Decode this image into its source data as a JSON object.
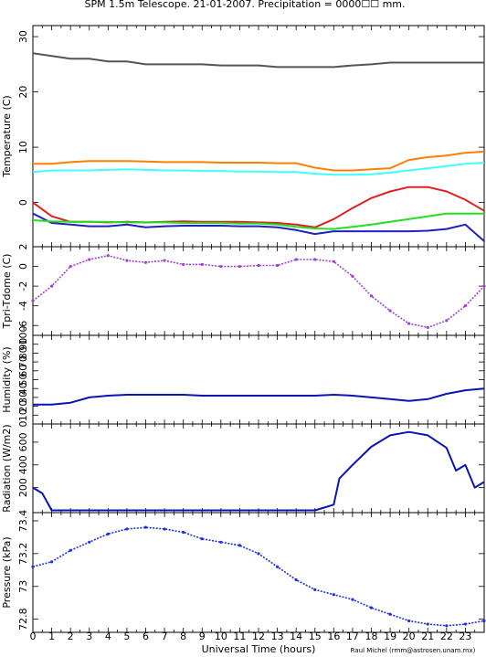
{
  "title": "SPM 1.5m Telescope. 21-01-2007. Precipitation = 0000☐☐ mm.",
  "xlabel": "Universal Time (hours)",
  "credit": "Raul Michel (rmm@astrosen.unam.mx)",
  "x_ticks": [
    "0",
    "1",
    "2",
    "3",
    "4",
    "5",
    "6",
    "7",
    "8",
    "9",
    "10",
    "11",
    "12",
    "13",
    "14",
    "15",
    "16",
    "17",
    "18",
    "19",
    "20",
    "21",
    "22",
    "23"
  ],
  "chart_data": [
    {
      "type": "line",
      "ylabel": "Temperature (C)",
      "ylim": [
        -8,
        32
      ],
      "y_ticks": [
        "0",
        "10",
        "20",
        "30"
      ],
      "series": [
        {
          "color": "#555555",
          "x": [
            0,
            1,
            2,
            3,
            4,
            5,
            6,
            7,
            8,
            9,
            10,
            11,
            12,
            13,
            14,
            15,
            16,
            17,
            18,
            19,
            20,
            21,
            22,
            23,
            24
          ],
          "values": [
            27,
            26.5,
            26,
            26,
            25.5,
            25.5,
            25,
            25,
            25,
            25,
            24.8,
            24.8,
            24.8,
            24.5,
            24.5,
            24.5,
            24.5,
            24.8,
            25,
            25.3,
            25.3,
            25.3,
            25.3,
            25.3,
            25.3
          ]
        },
        {
          "color": "#ff8000",
          "x": [
            0,
            1,
            2,
            3,
            4,
            5,
            6,
            7,
            8,
            9,
            10,
            11,
            12,
            13,
            14,
            15,
            16,
            17,
            18,
            19,
            20,
            21,
            22,
            23,
            24
          ],
          "values": [
            7,
            7,
            7.3,
            7.5,
            7.5,
            7.5,
            7.4,
            7.3,
            7.3,
            7.3,
            7.2,
            7.2,
            7.2,
            7.1,
            7.1,
            6.3,
            5.8,
            5.8,
            6,
            6.2,
            7.7,
            8.2,
            8.5,
            9,
            9.2
          ]
        },
        {
          "color": "#40ffff",
          "x": [
            0,
            1,
            2,
            3,
            4,
            5,
            6,
            7,
            8,
            9,
            10,
            11,
            12,
            13,
            14,
            15,
            16,
            17,
            18,
            19,
            20,
            21,
            22,
            23,
            24
          ],
          "values": [
            5.5,
            5.8,
            5.8,
            5.8,
            5.9,
            6,
            5.9,
            5.8,
            5.8,
            5.7,
            5.7,
            5.6,
            5.6,
            5.5,
            5.5,
            5.2,
            5,
            5,
            5.1,
            5.4,
            5.8,
            6.2,
            6.6,
            7,
            7.2
          ]
        },
        {
          "color": "#e02020",
          "x": [
            0,
            1,
            2,
            3,
            4,
            5,
            6,
            7,
            8,
            9,
            10,
            11,
            12,
            13,
            14,
            15,
            16,
            17,
            18,
            19,
            20,
            21,
            22,
            23,
            24
          ],
          "values": [
            0,
            -2.5,
            -3.5,
            -3.5,
            -3.6,
            -3.5,
            -3.6,
            -3.5,
            -3.4,
            -3.5,
            -3.5,
            -3.5,
            -3.6,
            -3.7,
            -4,
            -4.5,
            -3,
            -1,
            0.8,
            2,
            2.8,
            2.8,
            2,
            0.5,
            -1.5
          ]
        },
        {
          "color": "#2020c0",
          "x": [
            0,
            1,
            2,
            3,
            4,
            5,
            6,
            7,
            8,
            9,
            10,
            11,
            12,
            13,
            14,
            15,
            16,
            17,
            18,
            19,
            20,
            21,
            22,
            23,
            24
          ],
          "values": [
            -2,
            -3.7,
            -4,
            -4.3,
            -4.3,
            -4,
            -4.5,
            -4.3,
            -4.2,
            -4.2,
            -4.2,
            -4.3,
            -4.3,
            -4.5,
            -5,
            -5.7,
            -5.2,
            -5.2,
            -5.2,
            -5.2,
            -5.2,
            -5.1,
            -4.8,
            -4,
            -7
          ]
        },
        {
          "color": "#20e020",
          "x": [
            0,
            1,
            2,
            3,
            4,
            5,
            6,
            7,
            8,
            9,
            10,
            11,
            12,
            13,
            14,
            15,
            16,
            17,
            18,
            19,
            20,
            21,
            22,
            23,
            24
          ],
          "values": [
            -3.2,
            -3.4,
            -3.5,
            -3.5,
            -3.5,
            -3.6,
            -3.6,
            -3.6,
            -3.7,
            -3.7,
            -3.7,
            -3.8,
            -3.8,
            -4,
            -4.4,
            -4.7,
            -4.8,
            -4.4,
            -4,
            -3.5,
            -3,
            -2.5,
            -2,
            -2,
            -2
          ]
        }
      ]
    },
    {
      "type": "scatter",
      "ylabel": "Tpri-Tdome (C)",
      "ylim": [
        -7,
        2
      ],
      "y_ticks": [
        "2",
        "0",
        "-2",
        "-4",
        "-6"
      ],
      "series": [
        {
          "color": "#a040d0",
          "x": [
            0,
            1,
            2,
            3,
            4,
            5,
            6,
            7,
            8,
            9,
            10,
            11,
            12,
            13,
            14,
            15,
            16,
            17,
            18,
            19,
            20,
            21,
            22,
            23,
            24
          ],
          "values": [
            -3.5,
            -2,
            0,
            0.7,
            1.1,
            0.6,
            0.4,
            0.6,
            0.2,
            0.2,
            0,
            0,
            0.1,
            0.1,
            0.7,
            0.7,
            0.5,
            -1,
            -3,
            -4.5,
            -5.8,
            -6.2,
            -5.5,
            -4,
            -2
          ]
        }
      ]
    },
    {
      "type": "line",
      "ylabel": "Humidity (%)",
      "ylim": [
        0,
        100
      ],
      "y_ticks": [
        "0",
        "10",
        "20",
        "30",
        "40",
        "50",
        "60",
        "70",
        "80",
        "90",
        "100"
      ],
      "series": [
        {
          "color": "#0a14b4",
          "x": [
            0,
            1,
            2,
            3,
            4,
            5,
            6,
            7,
            8,
            9,
            10,
            11,
            12,
            13,
            14,
            15,
            16,
            17,
            18,
            19,
            20,
            21,
            22,
            23,
            24
          ],
          "values": [
            22,
            22,
            24,
            30,
            32,
            33,
            33,
            33,
            33,
            32,
            32,
            32,
            32,
            32,
            32,
            32,
            33,
            32,
            30,
            28,
            26,
            28,
            34,
            38,
            40
          ]
        }
      ]
    },
    {
      "type": "line",
      "ylabel": "Radiation (W/m2)",
      "ylim": [
        -20,
        760
      ],
      "y_ticks": [
        "200",
        "400",
        "600"
      ],
      "series": [
        {
          "color": "#0a14b4",
          "x": [
            0,
            0.5,
            1,
            2,
            3,
            4,
            5,
            6,
            7,
            8,
            9,
            10,
            11,
            12,
            13,
            14,
            15,
            16,
            16.3,
            17,
            18,
            19,
            20,
            21,
            22,
            22.5,
            23,
            23.5,
            24
          ],
          "values": [
            200,
            150,
            0,
            0,
            0,
            0,
            0,
            0,
            0,
            0,
            0,
            0,
            0,
            0,
            0,
            0,
            0,
            50,
            280,
            400,
            560,
            660,
            690,
            660,
            550,
            350,
            400,
            200,
            250
          ]
        }
      ]
    },
    {
      "type": "scatter",
      "ylabel": "Pressure (kPa)",
      "ylim": [
        72.72,
        73.45
      ],
      "y_ticks": [
        "72.8",
        "73",
        "73.2",
        "73.4"
      ],
      "series": [
        {
          "color": "#2030e0",
          "x": [
            0,
            1,
            2,
            3,
            4,
            5,
            6,
            7,
            8,
            9,
            10,
            11,
            12,
            13,
            14,
            15,
            16,
            17,
            18,
            19,
            20,
            21,
            22,
            23,
            24
          ],
          "values": [
            73.12,
            73.15,
            73.22,
            73.27,
            73.32,
            73.35,
            73.36,
            73.35,
            73.33,
            73.29,
            73.27,
            73.25,
            73.2,
            73.12,
            73.04,
            72.98,
            72.95,
            72.92,
            72.87,
            72.83,
            72.79,
            72.77,
            72.76,
            72.77,
            72.79
          ]
        }
      ]
    }
  ]
}
